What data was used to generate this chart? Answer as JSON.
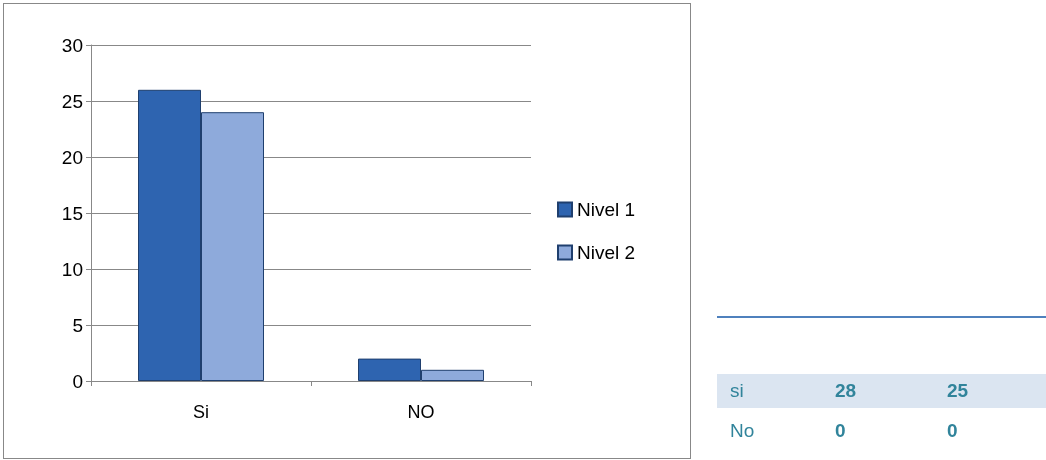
{
  "chart_data": [
    {
      "type": "bar",
      "categories": [
        "Si",
        "NO"
      ],
      "series": [
        {
          "name": "Nivel 1",
          "color": "#2e64b0",
          "values": [
            26,
            2
          ]
        },
        {
          "name": "Nivel 2",
          "color": "#8eaadb",
          "values": [
            24,
            1
          ]
        }
      ],
      "ylim": [
        0,
        30
      ],
      "yticks": [
        0,
        5,
        10,
        15,
        20,
        25,
        30
      ],
      "grid": "y",
      "legend": "right"
    },
    {
      "type": "other",
      "annotations": [
        "si",
        "28",
        "25",
        "No",
        "0",
        "0"
      ]
    }
  ]
}
